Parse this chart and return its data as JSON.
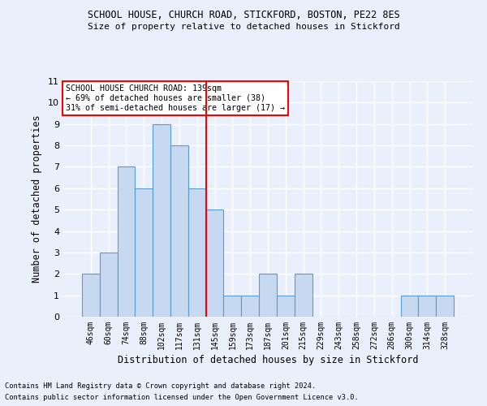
{
  "title1": "SCHOOL HOUSE, CHURCH ROAD, STICKFORD, BOSTON, PE22 8ES",
  "title2": "Size of property relative to detached houses in Stickford",
  "xlabel": "Distribution of detached houses by size in Stickford",
  "ylabel": "Number of detached properties",
  "footnote1": "Contains HM Land Registry data © Crown copyright and database right 2024.",
  "footnote2": "Contains public sector information licensed under the Open Government Licence v3.0.",
  "annotation_line1": "SCHOOL HOUSE CHURCH ROAD: 139sqm",
  "annotation_line2": "← 69% of detached houses are smaller (38)",
  "annotation_line3": "31% of semi-detached houses are larger (17) →",
  "bar_labels": [
    "46sqm",
    "60sqm",
    "74sqm",
    "88sqm",
    "102sqm",
    "117sqm",
    "131sqm",
    "145sqm",
    "159sqm",
    "173sqm",
    "187sqm",
    "201sqm",
    "215sqm",
    "229sqm",
    "243sqm",
    "258sqm",
    "272sqm",
    "286sqm",
    "300sqm",
    "314sqm",
    "328sqm"
  ],
  "bar_values": [
    2,
    3,
    7,
    6,
    9,
    8,
    6,
    5,
    1,
    1,
    2,
    1,
    2,
    0,
    0,
    0,
    0,
    0,
    1,
    1,
    1
  ],
  "bar_color": "#c6d9f1",
  "bar_edge_color": "#5b9bd5",
  "reference_line_x": 6.5,
  "reference_line_color": "red",
  "ylim": [
    0,
    11
  ],
  "yticks": [
    0,
    1,
    2,
    3,
    4,
    5,
    6,
    7,
    8,
    9,
    10,
    11
  ],
  "background_color": "#eaf0fb",
  "grid_color": "#ffffff",
  "annotation_box_color": "#ffffff",
  "annotation_box_edge": "red"
}
